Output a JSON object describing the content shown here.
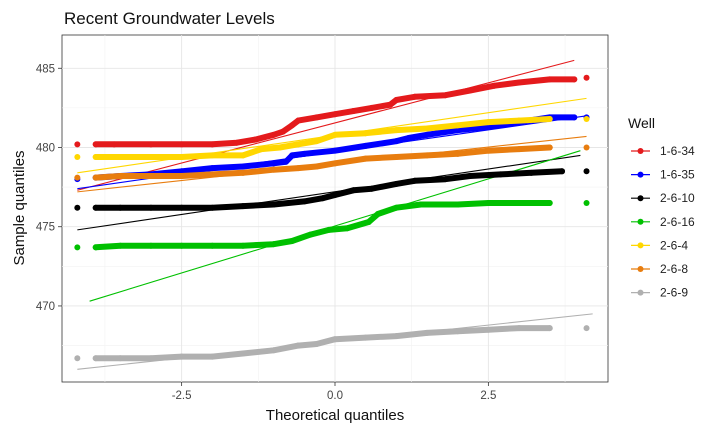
{
  "chart_data": {
    "type": "scatter",
    "title": "Recent Groundwater Levels",
    "xlabel": "Theoretical quantiles",
    "ylabel": "Sample quantiles",
    "xlim": [
      -4.45,
      4.45
    ],
    "ylim": [
      465.2,
      487.1
    ],
    "xticks": [
      -2.5,
      0.0,
      2.5
    ],
    "xtick_labels": [
      "-2.5",
      "0.0",
      "2.5"
    ],
    "yticks": [
      470,
      475,
      480,
      485
    ],
    "ytick_labels": [
      "470",
      "475",
      "480",
      "485"
    ],
    "grid": true,
    "legend": {
      "title": "Well",
      "position": "right"
    },
    "series": [
      {
        "name": "1-6-34",
        "color": "#e41a1c",
        "qq_line": [
          [
            -4.2,
            477.3
          ],
          [
            3.9,
            485.5
          ]
        ],
        "points": [
          [
            -4.2,
            480.2
          ],
          [
            -3.9,
            480.2
          ],
          [
            -3.6,
            480.2
          ],
          [
            -3.0,
            480.2
          ],
          [
            -2.5,
            480.2
          ],
          [
            -2.0,
            480.2
          ],
          [
            -1.6,
            480.3
          ],
          [
            -1.3,
            480.5
          ],
          [
            -1.0,
            480.8
          ],
          [
            -0.85,
            481.0
          ],
          [
            -0.7,
            481.4
          ],
          [
            -0.6,
            481.7
          ],
          [
            -0.3,
            481.9
          ],
          [
            0.0,
            482.1
          ],
          [
            0.3,
            482.3
          ],
          [
            0.6,
            482.5
          ],
          [
            0.9,
            482.7
          ],
          [
            1.0,
            483.0
          ],
          [
            1.3,
            483.2
          ],
          [
            1.8,
            483.3
          ],
          [
            2.2,
            483.6
          ],
          [
            2.6,
            483.9
          ],
          [
            3.0,
            484.1
          ],
          [
            3.5,
            484.3
          ],
          [
            3.9,
            484.3
          ],
          [
            4.1,
            484.4
          ]
        ]
      },
      {
        "name": "1-6-35",
        "color": "#0000ff",
        "qq_line": [
          [
            -4.2,
            477.4
          ],
          [
            4.1,
            482.0
          ]
        ],
        "points": [
          [
            -4.2,
            478.0
          ],
          [
            -3.9,
            478.1
          ],
          [
            -3.5,
            478.2
          ],
          [
            -3.0,
            478.3
          ],
          [
            -2.5,
            478.5
          ],
          [
            -2.0,
            478.7
          ],
          [
            -1.5,
            478.8
          ],
          [
            -1.0,
            479.0
          ],
          [
            -0.8,
            479.1
          ],
          [
            -0.7,
            479.5
          ],
          [
            -0.5,
            479.6
          ],
          [
            0.0,
            479.8
          ],
          [
            0.5,
            480.1
          ],
          [
            1.0,
            480.4
          ],
          [
            1.2,
            480.6
          ],
          [
            1.5,
            480.8
          ],
          [
            2.0,
            481.1
          ],
          [
            2.5,
            481.3
          ],
          [
            3.0,
            481.6
          ],
          [
            3.5,
            481.9
          ],
          [
            3.9,
            481.9
          ],
          [
            4.1,
            481.9
          ]
        ]
      },
      {
        "name": "2-6-10",
        "color": "#000000",
        "qq_line": [
          [
            -4.2,
            474.8
          ],
          [
            4.0,
            479.5
          ]
        ],
        "points": [
          [
            -4.2,
            476.2
          ],
          [
            -3.9,
            476.2
          ],
          [
            -3.5,
            476.2
          ],
          [
            -3.0,
            476.2
          ],
          [
            -2.5,
            476.2
          ],
          [
            -2.0,
            476.2
          ],
          [
            -1.5,
            476.3
          ],
          [
            -1.0,
            476.4
          ],
          [
            -0.5,
            476.6
          ],
          [
            -0.2,
            476.8
          ],
          [
            0.0,
            477.0
          ],
          [
            0.3,
            477.3
          ],
          [
            0.6,
            477.4
          ],
          [
            1.0,
            477.7
          ],
          [
            1.3,
            477.9
          ],
          [
            1.8,
            478.0
          ],
          [
            2.2,
            478.2
          ],
          [
            2.7,
            478.3
          ],
          [
            3.2,
            478.4
          ],
          [
            3.7,
            478.5
          ],
          [
            4.1,
            478.5
          ]
        ]
      },
      {
        "name": "2-6-16",
        "color": "#00c000",
        "qq_line": [
          [
            -4.0,
            470.3
          ],
          [
            4.0,
            479.8
          ]
        ],
        "points": [
          [
            -4.2,
            473.7
          ],
          [
            -3.9,
            473.7
          ],
          [
            -3.5,
            473.8
          ],
          [
            -3.0,
            473.8
          ],
          [
            -2.5,
            473.8
          ],
          [
            -2.0,
            473.8
          ],
          [
            -1.5,
            473.8
          ],
          [
            -1.0,
            473.9
          ],
          [
            -0.7,
            474.1
          ],
          [
            -0.4,
            474.5
          ],
          [
            -0.1,
            474.8
          ],
          [
            0.2,
            474.9
          ],
          [
            0.55,
            475.3
          ],
          [
            0.7,
            475.8
          ],
          [
            1.0,
            476.2
          ],
          [
            1.4,
            476.4
          ],
          [
            2.0,
            476.4
          ],
          [
            2.5,
            476.5
          ],
          [
            3.0,
            476.5
          ],
          [
            3.5,
            476.5
          ],
          [
            4.1,
            476.5
          ]
        ]
      },
      {
        "name": "2-6-4",
        "color": "#ffd700",
        "qq_line": [
          [
            -4.2,
            478.4
          ],
          [
            4.1,
            483.1
          ]
        ],
        "points": [
          [
            -4.2,
            479.4
          ],
          [
            -3.9,
            479.4
          ],
          [
            -3.5,
            479.4
          ],
          [
            -3.0,
            479.4
          ],
          [
            -2.5,
            479.4
          ],
          [
            -2.0,
            479.5
          ],
          [
            -1.5,
            479.5
          ],
          [
            -1.2,
            479.9
          ],
          [
            -0.9,
            480.0
          ],
          [
            -0.6,
            480.2
          ],
          [
            -0.3,
            480.4
          ],
          [
            0.0,
            480.8
          ],
          [
            0.5,
            480.9
          ],
          [
            1.0,
            481.1
          ],
          [
            1.5,
            481.2
          ],
          [
            2.0,
            481.4
          ],
          [
            2.5,
            481.6
          ],
          [
            3.0,
            481.7
          ],
          [
            3.5,
            481.8
          ],
          [
            4.1,
            481.8
          ]
        ]
      },
      {
        "name": "2-6-8",
        "color": "#e87d0f",
        "qq_line": [
          [
            -4.2,
            477.2
          ],
          [
            4.1,
            480.7
          ]
        ],
        "points": [
          [
            -4.2,
            478.1
          ],
          [
            -3.9,
            478.1
          ],
          [
            -3.5,
            478.2
          ],
          [
            -3.0,
            478.2
          ],
          [
            -2.5,
            478.2
          ],
          [
            -2.0,
            478.3
          ],
          [
            -1.5,
            478.4
          ],
          [
            -1.0,
            478.6
          ],
          [
            -0.6,
            478.7
          ],
          [
            -0.3,
            478.8
          ],
          [
            0.0,
            479.0
          ],
          [
            0.5,
            479.3
          ],
          [
            1.0,
            479.4
          ],
          [
            1.5,
            479.5
          ],
          [
            2.0,
            479.6
          ],
          [
            2.5,
            479.8
          ],
          [
            3.0,
            479.9
          ],
          [
            3.5,
            480.0
          ],
          [
            4.1,
            480.0
          ]
        ]
      },
      {
        "name": "2-6-9",
        "color": "#b0b0b0",
        "qq_line": [
          [
            -4.2,
            466.0
          ],
          [
            4.2,
            469.5
          ]
        ],
        "points": [
          [
            -4.2,
            466.7
          ],
          [
            -3.9,
            466.7
          ],
          [
            -3.5,
            466.7
          ],
          [
            -3.0,
            466.7
          ],
          [
            -2.5,
            466.8
          ],
          [
            -2.0,
            466.8
          ],
          [
            -1.5,
            467.0
          ],
          [
            -1.0,
            467.2
          ],
          [
            -0.6,
            467.5
          ],
          [
            -0.3,
            467.6
          ],
          [
            0.0,
            467.9
          ],
          [
            0.5,
            468.0
          ],
          [
            1.0,
            468.1
          ],
          [
            1.5,
            468.3
          ],
          [
            2.0,
            468.4
          ],
          [
            2.5,
            468.5
          ],
          [
            3.0,
            468.6
          ],
          [
            3.5,
            468.6
          ],
          [
            4.1,
            468.6
          ]
        ]
      }
    ]
  }
}
